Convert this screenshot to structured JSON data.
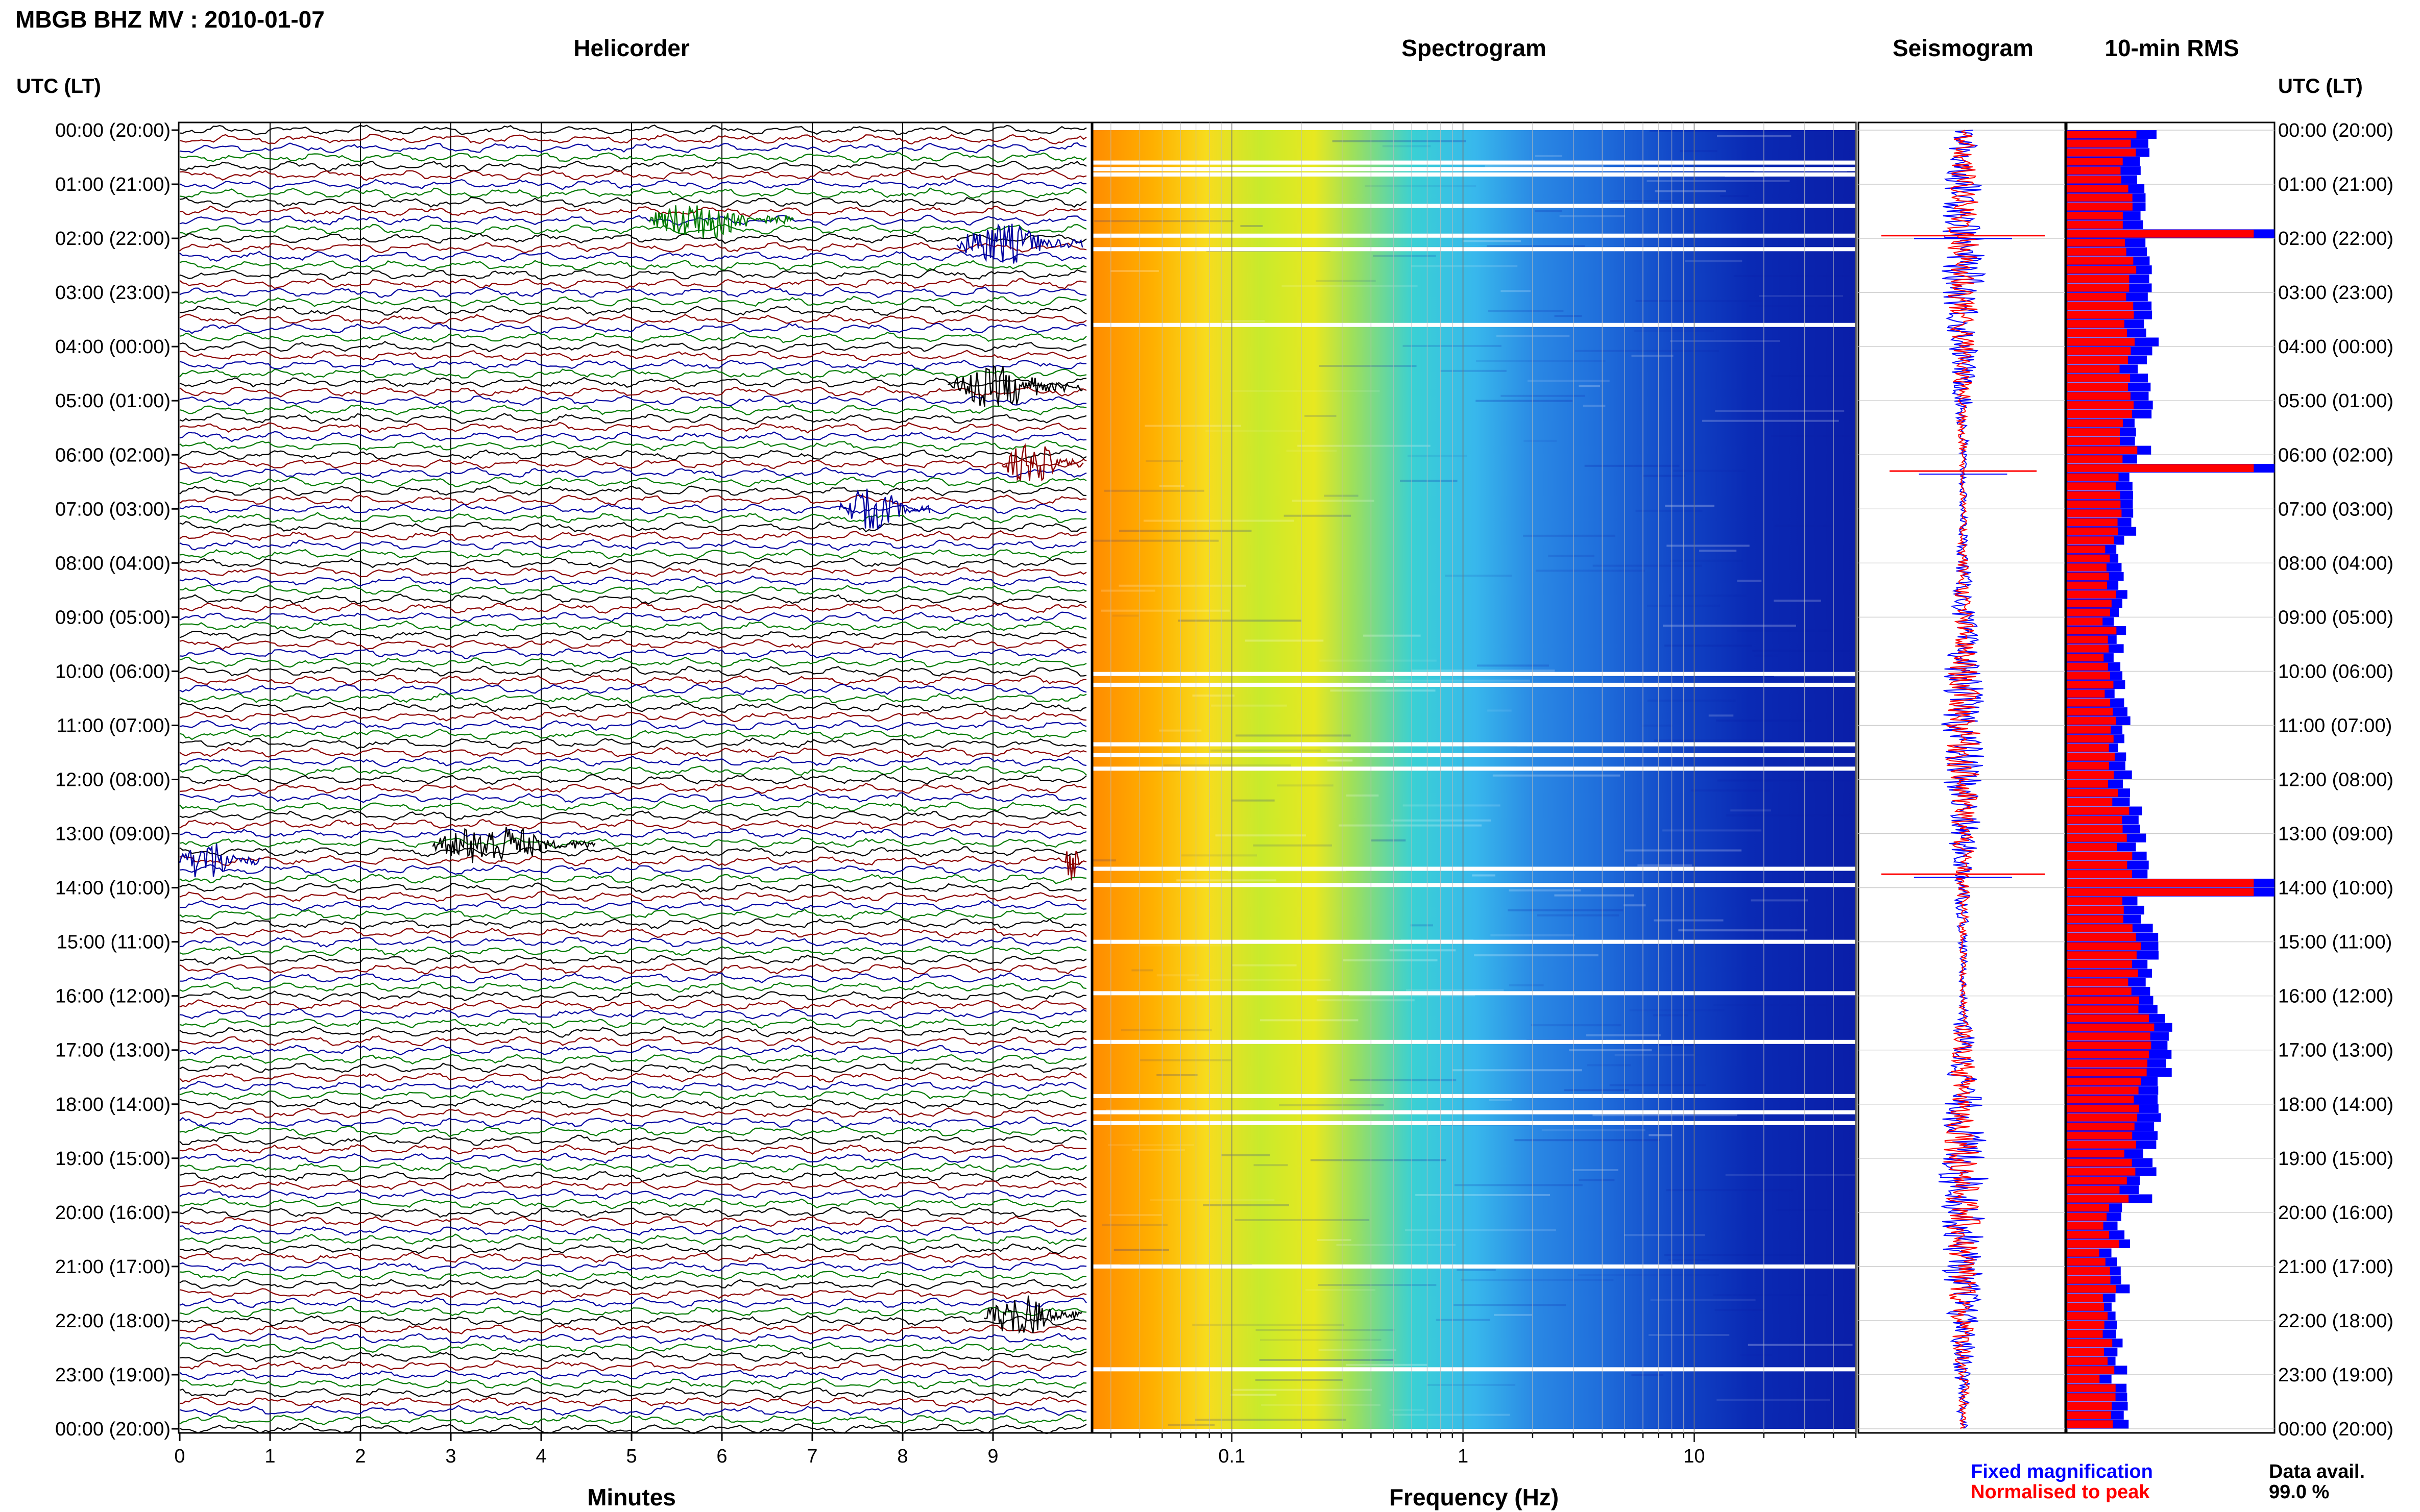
{
  "figure": {
    "title": "MBGB BHZ MV : 2010-01-07",
    "utc_lt_label": "UTC (LT)",
    "data_avail_label": "Data avail.",
    "data_avail_value": "99.0 %"
  },
  "legend": {
    "fixed": "Fixed magnification",
    "normalised": "Normalised to peak",
    "fixed_color": "#0000ff",
    "normalised_color": "#ff0000"
  },
  "chart_data": [
    {
      "type": "line",
      "title": "Helicorder",
      "xlabel": "Minutes",
      "xlim": [
        0,
        10
      ],
      "x_ticks": [
        "0",
        "1",
        "2",
        "3",
        "4",
        "5",
        "6",
        "7",
        "8",
        "9"
      ],
      "y_ticks": [
        "00:00 (20:00)",
        "01:00 (21:00)",
        "02:00 (22:00)",
        "03:00 (23:00)",
        "04:00 (00:00)",
        "05:00 (01:00)",
        "06:00 (02:00)",
        "07:00 (03:00)",
        "08:00 (04:00)",
        "09:00 (05:00)",
        "10:00 (06:00)",
        "11:00 (07:00)",
        "12:00 (08:00)",
        "13:00 (09:00)",
        "14:00 (10:00)",
        "15:00 (11:00)",
        "16:00 (12:00)",
        "17:00 (13:00)",
        "18:00 (14:00)",
        "19:00 (15:00)",
        "20:00 (16:00)",
        "21:00 (17:00)",
        "22:00 (18:00)",
        "23:00 (19:00)",
        "00:00 (20:00)"
      ],
      "trace_colors": [
        "#000000",
        "#8b0000",
        "#0000a0",
        "#007a00"
      ],
      "traces_per_hour": 6,
      "events": [
        {
          "hour": 1.65,
          "minute_start": 5.2,
          "minute_end": 6.8,
          "color": "#007a00"
        },
        {
          "hour": 2.1,
          "minute_start": 8.6,
          "minute_end": 10.0,
          "color": "#0000a0"
        },
        {
          "hour": 4.75,
          "minute_start": 8.5,
          "minute_end": 10.0,
          "color": "#000000"
        },
        {
          "hour": 6.15,
          "minute_start": 9.1,
          "minute_end": 10.0,
          "color": "#8b0000"
        },
        {
          "hour": 7.0,
          "minute_start": 7.3,
          "minute_end": 8.3,
          "color": "#0000a0"
        },
        {
          "hour": 13.2,
          "minute_start": 2.8,
          "minute_end": 4.6,
          "color": "#000000"
        },
        {
          "hour": 13.5,
          "minute_start": 0.0,
          "minute_end": 0.9,
          "color": "#0000a0"
        },
        {
          "hour": 13.5,
          "minute_start": 9.8,
          "minute_end": 10.0,
          "color": "#8b0000"
        },
        {
          "hour": 21.9,
          "minute_start": 8.9,
          "minute_end": 10.0,
          "color": "#000000"
        }
      ]
    },
    {
      "type": "heatmap",
      "title": "Spectrogram",
      "xlabel": "Frequency (Hz)",
      "x_scale": "log",
      "xlim": [
        0.025,
        50
      ],
      "x_ticks": [
        "0.1",
        "1",
        "10"
      ],
      "ylim": [
        0,
        24
      ],
      "gap_hours": [
        0.6,
        0.72,
        0.82,
        1.4,
        1.95,
        2.2,
        3.6,
        10.05,
        10.25,
        11.35,
        11.55,
        11.8,
        13.65,
        13.95,
        15.0,
        15.95,
        16.85,
        17.85,
        18.15,
        18.35,
        21.0,
        22.9
      ]
    },
    {
      "type": "line",
      "title": "Seismogram",
      "ylim": [
        0,
        24
      ],
      "spikes": [
        {
          "hour": 1.95,
          "amplitude": 1.0
        },
        {
          "hour": 6.3,
          "amplitude": 0.9
        },
        {
          "hour": 13.75,
          "amplitude": 1.0
        }
      ]
    },
    {
      "type": "bar",
      "title": "10-min RMS",
      "orientation": "horizontal",
      "ylim": [
        0,
        24
      ],
      "bins_per_hour": 6,
      "peak_bins": [
        {
          "hour": 1.9,
          "value": 1.0
        },
        {
          "hour": 6.2,
          "value": 1.0
        },
        {
          "hour": 13.9,
          "value": 1.0
        }
      ]
    }
  ]
}
